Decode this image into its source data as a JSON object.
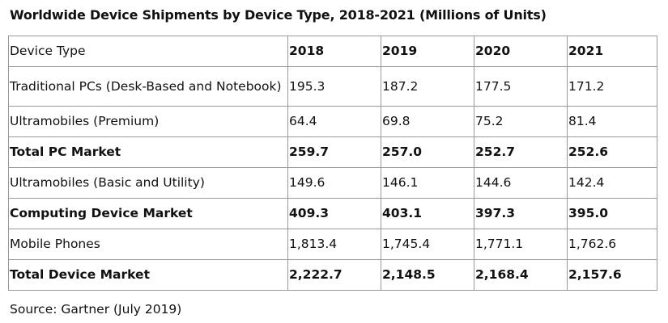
{
  "title": "Worldwide Device Shipments by Device Type, 2018-2021 (Millions of Units)",
  "source": "Source: Gartner (July 2019)",
  "chart_data": {
    "type": "table",
    "title": "Worldwide Device Shipments by Device Type, 2018-2021 (Millions of Units)",
    "header": [
      "Device Type",
      "2018",
      "2019",
      "2020",
      "2021"
    ],
    "rows": [
      {
        "label": "Traditional PCs (Desk-Based and Notebook)",
        "values": [
          "195.3",
          "187.2",
          "177.5",
          "171.2"
        ],
        "bold": false,
        "wrap": true
      },
      {
        "label": "Ultramobiles (Premium)",
        "values": [
          "64.4",
          "69.8",
          "75.2",
          "81.4"
        ],
        "bold": false,
        "wrap": false
      },
      {
        "label": "Total PC Market",
        "values": [
          "259.7",
          "257.0",
          "252.7",
          "252.6"
        ],
        "bold": true,
        "wrap": false
      },
      {
        "label": "Ultramobiles (Basic and Utility)",
        "values": [
          "149.6",
          "146.1",
          "144.6",
          "142.4"
        ],
        "bold": false,
        "wrap": false
      },
      {
        "label": "Computing Device Market",
        "values": [
          "409.3",
          "403.1",
          "397.3",
          "395.0"
        ],
        "bold": true,
        "wrap": false
      },
      {
        "label": "Mobile Phones",
        "values": [
          "1,813.4",
          "1,745.4",
          "1,771.1",
          "1,762.6"
        ],
        "bold": false,
        "wrap": false
      },
      {
        "label": "Total Device Market",
        "values": [
          "2,222.7",
          "2,148.5",
          "2,168.4",
          "2,157.6"
        ],
        "bold": true,
        "wrap": false
      }
    ]
  }
}
